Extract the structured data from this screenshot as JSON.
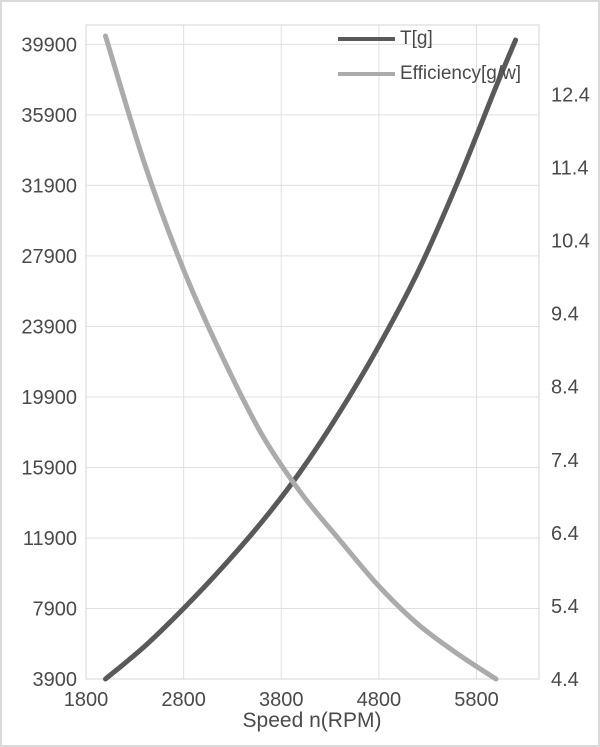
{
  "colors": {
    "t_line": "#595959",
    "efficiency_line": "#ababab",
    "gridline": "#e0e0e0",
    "plot_border": "#d6d6d6",
    "text": "#4a4a4a",
    "frame_border": "#d9d9d9"
  },
  "legend": {
    "items": [
      {
        "label": "T[g]",
        "color": "#595959"
      },
      {
        "label": "Efficiency[g/w]",
        "color": "#ababab"
      }
    ]
  },
  "chart_data": {
    "type": "line",
    "title": "",
    "xlabel": "Speed n(RPM)",
    "x_axis": {
      "ticks": [
        1800,
        2800,
        3800,
        4800,
        5800
      ],
      "range": [
        1800,
        6440
      ]
    },
    "left_axis": {
      "label": "",
      "ticks": [
        3900,
        7900,
        11900,
        15900,
        19900,
        23900,
        27900,
        31900,
        35900,
        39900
      ],
      "range": [
        3900,
        41000
      ]
    },
    "right_axis": {
      "label": "",
      "ticks": [
        4.4,
        5.4,
        6.4,
        7.4,
        8.4,
        9.4,
        10.4,
        11.4,
        12.4
      ],
      "tick_decimals": 1,
      "range": [
        4.4,
        13.35
      ]
    },
    "grid": true,
    "legend_position": "top-right-inside",
    "series": [
      {
        "name": "T[g]",
        "axis": "left",
        "color": "#595959",
        "x": [
          2000,
          2400,
          2800,
          3200,
          3600,
          4000,
          4400,
          4800,
          5200,
          5600,
          6000,
          6200
        ],
        "y": [
          3900,
          5750,
          7900,
          10250,
          12800,
          15700,
          19050,
          22800,
          27000,
          32000,
          37500,
          40150
        ]
      },
      {
        "name": "Efficiency[g/w]",
        "axis": "right",
        "color": "#ababab",
        "x": [
          2000,
          2400,
          2800,
          3200,
          3600,
          4000,
          4400,
          4800,
          5200,
          5600,
          6000
        ],
        "y": [
          13.2,
          11.45,
          10.0,
          8.8,
          7.75,
          6.95,
          6.3,
          5.67,
          5.15,
          4.75,
          4.4
        ]
      }
    ]
  }
}
